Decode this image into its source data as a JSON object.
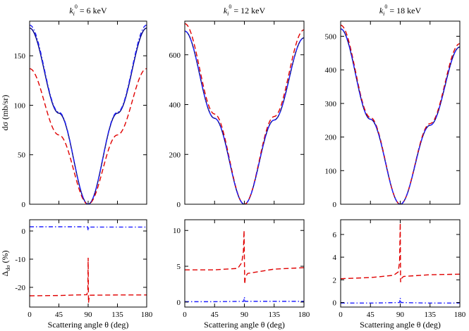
{
  "chart_data": {
    "type": "line",
    "panel_titles": [
      {
        "k": "k",
        "sub": "i",
        "sup": "0",
        "text": " = 6 keV"
      },
      {
        "k": "k",
        "sub": "i",
        "sup": "0",
        "text": " = 12 keV"
      },
      {
        "k": "k",
        "sub": "i",
        "sup": "0",
        "text": " = 18 keV"
      }
    ],
    "xlabel": "Scattering angle θ (deg)",
    "xlim": [
      0,
      180
    ],
    "xticks": [
      0,
      45,
      90,
      135,
      180
    ],
    "ylabel_top": "dσ (mb/sr)",
    "ylabel_bottom": {
      "main": "Δ",
      "sub": "dσ",
      "rest": " (%)"
    },
    "series_styles": [
      {
        "name": "solid",
        "color": "#000080",
        "dash": ""
      },
      {
        "name": "dashed",
        "color": "#e00000",
        "dash": "7,4"
      },
      {
        "name": "dash-dot",
        "color": "#2020ff",
        "dash": "6,3,1.5,3"
      }
    ],
    "top_panels": [
      {
        "ylim": [
          0,
          185
        ],
        "yticks": [
          0,
          50,
          100,
          150
        ],
        "series": [
          {
            "name": "solid",
            "x": [
              0,
              45,
              90,
              135,
              180
            ],
            "y": [
              178,
              92,
              0,
              92,
              178
            ]
          },
          {
            "name": "dashed",
            "x": [
              0,
              45,
              90,
              135,
              180
            ],
            "y": [
              137,
              70,
              0,
              70,
              137
            ]
          },
          {
            "name": "dash-dot",
            "x": [
              0,
              45,
              90,
              135,
              180
            ],
            "y": [
              181,
              93,
              0,
              93,
              181
            ]
          }
        ]
      },
      {
        "ylim": [
          0,
          735
        ],
        "yticks": [
          0,
          200,
          400,
          600
        ],
        "series": [
          {
            "name": "solid",
            "x": [
              0,
              45,
              90,
              135,
              180
            ],
            "y": [
              695,
              345,
              0,
              338,
              668
            ]
          },
          {
            "name": "dashed",
            "x": [
              0,
              45,
              90,
              135,
              180
            ],
            "y": [
              725,
              362,
              0,
              352,
              700
            ]
          },
          {
            "name": "dash-dot",
            "x": [
              0,
              45,
              90,
              135,
              180
            ],
            "y": [
              695,
              345,
              0,
              338,
              668
            ]
          }
        ]
      },
      {
        "ylim": [
          0,
          545
        ],
        "yticks": [
          0,
          100,
          200,
          300,
          400,
          500
        ],
        "series": [
          {
            "name": "solid",
            "x": [
              0,
              45,
              90,
              135,
              180
            ],
            "y": [
              522,
              253,
              0,
              235,
              468
            ]
          },
          {
            "name": "dashed",
            "x": [
              0,
              45,
              90,
              135,
              180
            ],
            "y": [
              533,
              258,
              0,
              240,
              478
            ]
          },
          {
            "name": "dash-dot",
            "x": [
              0,
              45,
              90,
              135,
              180
            ],
            "y": [
              522,
              253,
              0,
              235,
              468
            ]
          }
        ]
      }
    ],
    "bottom_panels": [
      {
        "ylim": [
          -27,
          4
        ],
        "yticks": [
          -20,
          -10,
          0
        ],
        "series": [
          {
            "name": "dashed",
            "x": [
              0,
              45,
              88,
              89.5,
              90,
              90.5,
              92,
              135,
              180
            ],
            "y": [
              -23,
              -22.9,
              -22.6,
              -21,
              -9.5,
              -25.5,
              -22.8,
              -22.7,
              -22.7
            ]
          },
          {
            "name": "dash-dot",
            "x": [
              0,
              45,
              89,
              90,
              91,
              135,
              180
            ],
            "y": [
              1.5,
              1.5,
              1.5,
              0.2,
              1.4,
              1.4,
              1.4
            ]
          }
        ]
      },
      {
        "ylim": [
          -0.7,
          11.5
        ],
        "yticks": [
          0,
          5,
          10
        ],
        "series": [
          {
            "name": "dashed",
            "x": [
              0,
              45,
              80,
              86,
              88.5,
              89.5,
              90.5,
              91.5,
              95,
              135,
              180
            ],
            "y": [
              4.5,
              4.5,
              4.7,
              5.5,
              7.0,
              10.0,
              2.5,
              3.5,
              4.0,
              4.6,
              4.8
            ]
          },
          {
            "name": "dash-dot",
            "x": [
              0,
              45,
              89,
              90,
              91,
              135,
              180
            ],
            "y": [
              0.05,
              0.05,
              0.1,
              0.7,
              0.1,
              0.1,
              0.1
            ]
          }
        ]
      },
      {
        "ylim": [
          -0.4,
          7.3
        ],
        "yticks": [
          0,
          2,
          4,
          6
        ],
        "series": [
          {
            "name": "dashed",
            "x": [
              0,
              45,
              80,
              87,
              89,
              90,
              90.5,
              91.5,
              95,
              135,
              180
            ],
            "y": [
              2.1,
              2.2,
              2.4,
              2.7,
              3.6,
              7.0,
              1.8,
              2.1,
              2.3,
              2.45,
              2.5
            ]
          },
          {
            "name": "dash-dot",
            "x": [
              0,
              45,
              89,
              90,
              91,
              135,
              180
            ],
            "y": [
              -0.05,
              -0.05,
              0.0,
              0.4,
              0.0,
              -0.05,
              -0.05
            ]
          }
        ]
      }
    ]
  }
}
